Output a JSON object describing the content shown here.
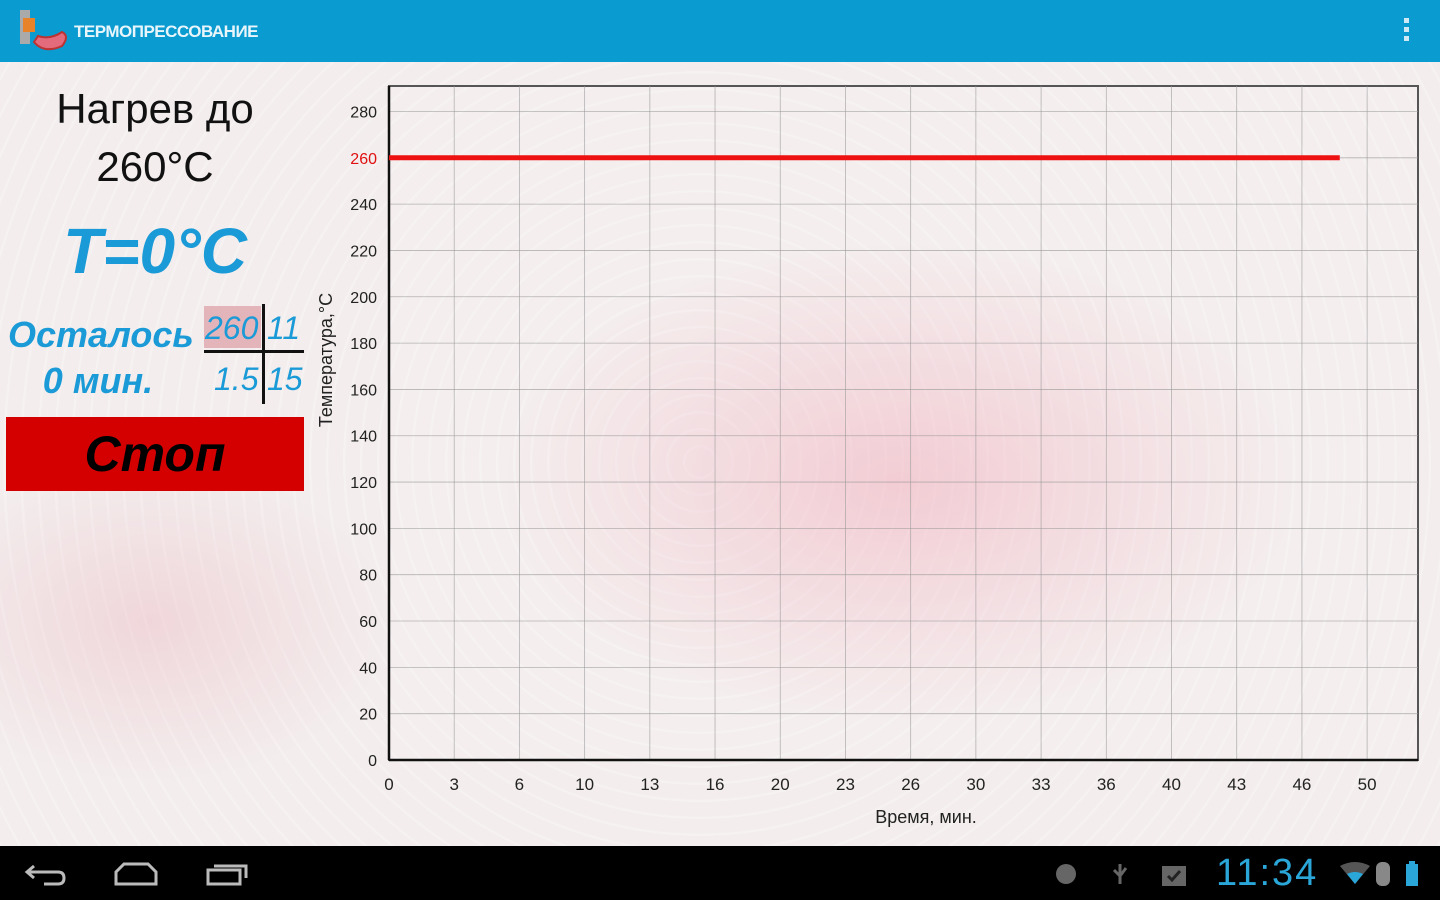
{
  "app": {
    "title": "ТЕРМОПРЕССОВАНИЕ",
    "logo_icon": "denture-press-icon",
    "menu_icon": "overflow-menu-icon"
  },
  "left": {
    "heat_line1": "Нагрев до",
    "heat_line2": "260°C",
    "current_temp": "T=0°C",
    "remaining_label": "Осталось",
    "remaining_value": "0 мин.",
    "table": {
      "tl": "260",
      "tr": "11",
      "bl": "1.5",
      "br": "15"
    },
    "stop_label": "Стоп"
  },
  "chart_data": {
    "type": "line",
    "xlabel": "Время, мин.",
    "ylabel": "Температура,°C",
    "x_tick_labels": [
      "0",
      "3",
      "6",
      "10",
      "13",
      "16",
      "20",
      "23",
      "26",
      "30",
      "33",
      "36",
      "40",
      "43",
      "46",
      "50"
    ],
    "y_ticks": [
      0,
      20,
      40,
      60,
      80,
      100,
      120,
      140,
      160,
      180,
      200,
      220,
      240,
      260,
      280
    ],
    "highlight_y_tick": 260,
    "xlim": [
      0,
      52.6
    ],
    "ylim": [
      0,
      291
    ],
    "grid": true,
    "series": [
      {
        "x": [
          0,
          48.6
        ],
        "y": [
          260,
          260
        ],
        "color": "#ee1111"
      }
    ]
  },
  "statusbar": {
    "time": "11:34",
    "icons": [
      "debug-icon",
      "usb-icon",
      "clipboard-check-icon",
      "wifi-icon",
      "bluetooth-icon",
      "battery-icon"
    ]
  },
  "navbar": {
    "icons": [
      "back-icon",
      "home-icon",
      "recent-apps-icon"
    ]
  },
  "colors": {
    "header": "#0a9bd0",
    "accent": "#1a9ad6",
    "stop": "#d40000",
    "target_line": "#ee1111"
  }
}
